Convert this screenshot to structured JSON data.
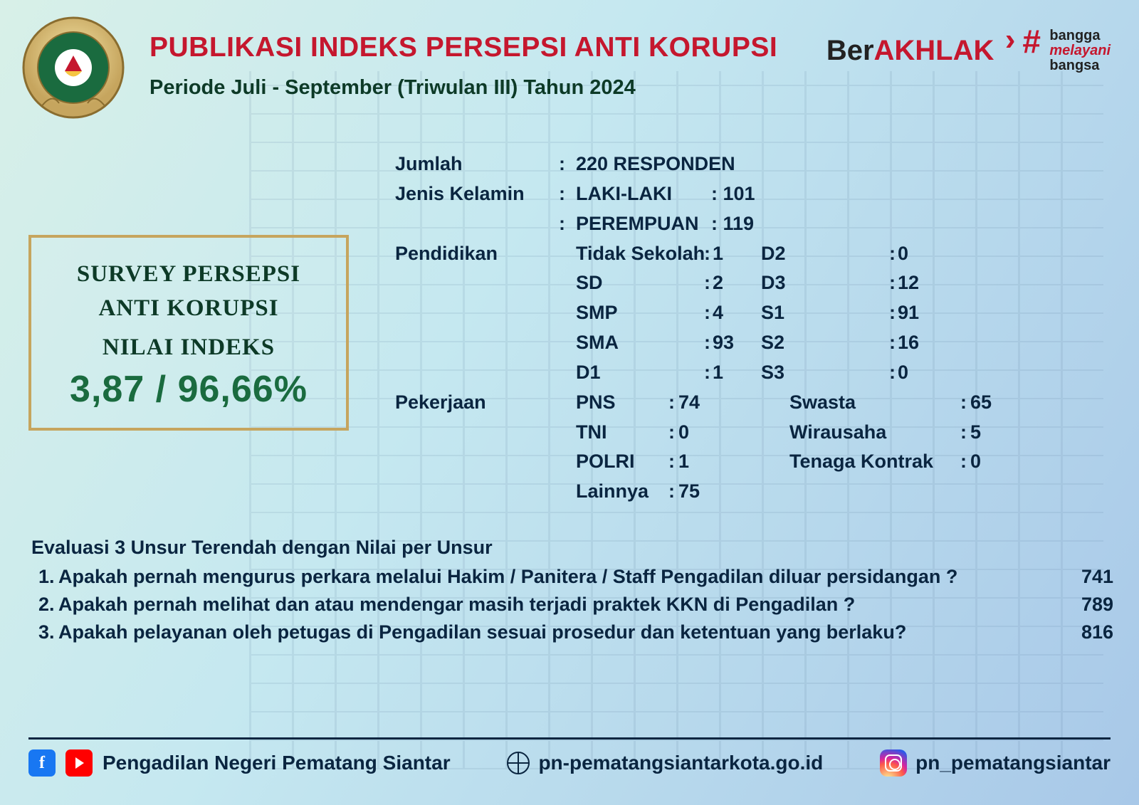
{
  "header": {
    "title": "PUBLIKASI INDEKS PERSEPSI ANTI KORUPSI",
    "subtitle": "Periode Juli - September (Triwulan III) Tahun 2024",
    "brand_ber": "Ber",
    "brand_akhlak": "AKHLAK",
    "bangga_top": "bangga",
    "bangga_mid": "melayani",
    "bangga_bot": "bangsa",
    "title_color": "#c5172e",
    "subtitle_color": "#0d3a27"
  },
  "index_box": {
    "line1a": "SURVEY PERSEPSI",
    "line1b": "ANTI KORUPSI",
    "line2": "NILAI INDEKS",
    "value": "3,87 / 96,66%",
    "border_color": "#c6a55e",
    "value_color": "#1a6b3f"
  },
  "stats": {
    "jumlah_label": "Jumlah",
    "jumlah_value": "220 RESPONDEN",
    "gender_label": "Jenis Kelamin",
    "gender": {
      "male_label": "LAKI-LAKI",
      "male_val": "101",
      "female_label": "PEREMPUAN",
      "female_val": "119"
    },
    "edu_label": "Pendidikan",
    "edu_col1": [
      {
        "k": "Tidak Sekolah",
        "v": "1"
      },
      {
        "k": "SD",
        "v": "2"
      },
      {
        "k": "SMP",
        "v": "4"
      },
      {
        "k": "SMA",
        "v": "93"
      },
      {
        "k": "D1",
        "v": "1"
      }
    ],
    "edu_col2": [
      {
        "k": "D2",
        "v": "0"
      },
      {
        "k": "D3",
        "v": "12"
      },
      {
        "k": "S1",
        "v": "91"
      },
      {
        "k": "S2",
        "v": "16"
      },
      {
        "k": "S3",
        "v": "0"
      }
    ],
    "job_label": "Pekerjaan",
    "job_col1": [
      {
        "k": "PNS",
        "v": "74"
      },
      {
        "k": "TNI",
        "v": "0"
      },
      {
        "k": "POLRI",
        "v": "1"
      },
      {
        "k": "Lainnya",
        "v": "75"
      }
    ],
    "job_col2": [
      {
        "k": "Swasta",
        "v": "65"
      },
      {
        "k": "Wirausaha",
        "v": "5"
      },
      {
        "k": "Tenaga Kontrak",
        "v": "0"
      }
    ]
  },
  "evaluation": {
    "title": "Evaluasi 3 Unsur Terendah dengan Nilai per Unsur",
    "items": [
      {
        "n": "1.",
        "q": "Apakah pernah mengurus perkara melalui Hakim / Panitera / Staff Pengadilan diluar persidangan ?",
        "s": "741"
      },
      {
        "n": "2.",
        "q": "Apakah pernah melihat dan atau mendengar masih terjadi praktek KKN di Pengadilan ?",
        "s": "789"
      },
      {
        "n": "3.",
        "q": "Apakah pelayanan oleh petugas di Pengadilan sesuai prosedur dan ketentuan yang berlaku?",
        "s": "816"
      }
    ]
  },
  "footer": {
    "org": "Pengadilan Negeri Pematang Siantar",
    "web": "pn-pematangsiantarkota.go.id",
    "ig": "pn_pematangsiantar"
  },
  "colors": {
    "text": "#0a2540",
    "red": "#c5172e",
    "green": "#0d3a27"
  }
}
